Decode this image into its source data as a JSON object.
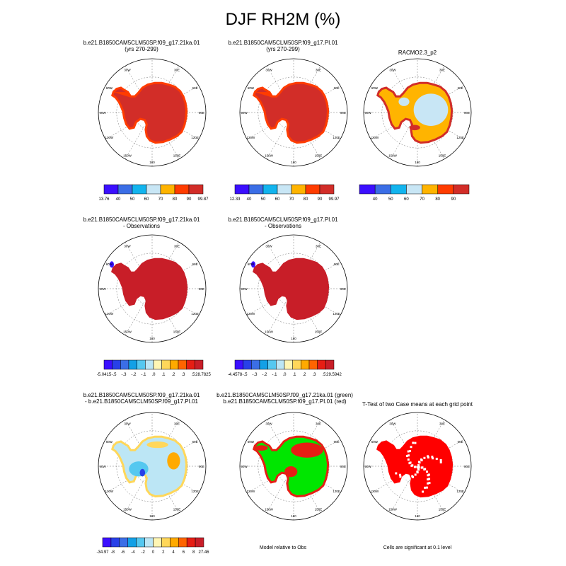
{
  "title": "DJF RH2M (%)",
  "panels": [
    {
      "id": "p1",
      "title1": "b.e21.B1850CAM5CLM50SP.f09_g17.21ka.01",
      "title2": "(yrs 270-299)",
      "fill": "red",
      "holes": "none"
    },
    {
      "id": "p2",
      "title1": "b.e21.B1850CAM5CLM50SP.f09_g17.PI.01",
      "title2": "(yrs 270-299)",
      "fill": "red",
      "holes": "none"
    },
    {
      "id": "p3",
      "title1": "RACMO2.3_p2",
      "title2": "",
      "fill": "obs",
      "holes": "none"
    },
    {
      "id": "p4",
      "title1": "b.e21.B1850CAM5CLM50SP.f09_g17.21ka.01",
      "title2": "- Observations",
      "fill": "diff",
      "holes": "none"
    },
    {
      "id": "p5",
      "title1": "b.e21.B1850CAM5CLM50SP.f09_g17.PI.01",
      "title2": "- Observations",
      "fill": "diff",
      "holes": "none"
    },
    {
      "id": "p6",
      "title1": "b.e21.B1850CAM5CLM50SP.f09_g17.21ka.01",
      "title2": "- b.e21.B1850CAM5CLM50SP.f09_g17.PI.01",
      "fill": "cdiff",
      "holes": "none"
    },
    {
      "id": "p7",
      "title1": "b.e21.B1850CAM5CLM50SP.f09_g17.21ka.01 (green)",
      "title2": "b.e21.B1850CAM5CLM50SP.f09_g17.PI.01 (red)",
      "fill": "green",
      "holes": "none"
    },
    {
      "id": "p8",
      "title1": "T-Test of two Case means at each grid point",
      "title2": "",
      "fill": "ttest",
      "holes": "white"
    }
  ],
  "map_labels": {
    "lon": [
      "30W",
      "30E",
      "60W",
      "60E",
      "90W",
      "90E",
      "120W",
      "120E",
      "150W",
      "150E",
      "180"
    ]
  },
  "colorbars": [
    {
      "id": "cb1",
      "colors": [
        "#3b0fff",
        "#3b6ee6",
        "#12b4ee",
        "#c8e6f5",
        "#ffb400",
        "#ff3c00",
        "#d22d28"
      ],
      "ticks": [
        "13.76",
        "40",
        "50",
        "60",
        "70",
        "80",
        "90",
        "99.87"
      ]
    },
    {
      "id": "cb2",
      "colors": [
        "#3b0fff",
        "#3b6ee6",
        "#12b4ee",
        "#c8e6f5",
        "#ffb400",
        "#ff3c00",
        "#d22d28"
      ],
      "ticks": [
        "12.33",
        "40",
        "50",
        "60",
        "70",
        "80",
        "90",
        "99.97"
      ]
    },
    {
      "id": "cb3",
      "colors": [
        "#3b0fff",
        "#3b6ee6",
        "#12b4ee",
        "#c8e6f5",
        "#ffb400",
        "#ff3c00",
        "#d22d28"
      ],
      "ticks": [
        "",
        "40",
        "50",
        "60",
        "70",
        "80",
        "90",
        ""
      ]
    },
    {
      "id": "cb4",
      "colors": [
        "#3b0fff",
        "#2840e8",
        "#3b6ee6",
        "#12a0e6",
        "#55c8f0",
        "#bce6f5",
        "#fff6b4",
        "#ffd75a",
        "#ffaa00",
        "#ff6400",
        "#e61e14",
        "#c81e28"
      ],
      "ticks": [
        "-5.0415",
        "-.5",
        "-.3",
        "-.2",
        "-.1",
        ".0",
        ".1",
        ".2",
        ".3",
        ".5",
        "28.7825"
      ]
    },
    {
      "id": "cb5",
      "colors": [
        "#3b0fff",
        "#2840e8",
        "#3b6ee6",
        "#12a0e6",
        "#55c8f0",
        "#bce6f5",
        "#fff6b4",
        "#ffd75a",
        "#ffaa00",
        "#ff6400",
        "#e61e14",
        "#c81e28"
      ],
      "ticks": [
        "-4.4578",
        "-.5",
        "-.3",
        "-.2",
        "-.1",
        ".0",
        ".1",
        ".2",
        ".3",
        ".5",
        "29.5942"
      ]
    },
    {
      "id": "cb6",
      "colors": [
        "#3b0fff",
        "#2840e8",
        "#3b6ee6",
        "#12a0e6",
        "#55c8f0",
        "#bce6f5",
        "#fff6b4",
        "#ffd75a",
        "#ffaa00",
        "#ff6400",
        "#e61e14",
        "#c81e28"
      ],
      "ticks": [
        "-34.97",
        "-8",
        "-6",
        "-4",
        "-2",
        "0",
        "2",
        "4",
        "6",
        "8",
        "27.46"
      ]
    }
  ],
  "footnotes": {
    "model_relative": "Model relative to Obs",
    "cells_significant": "Cells are significant at 0.1 level"
  },
  "chart_data": [
    {
      "type": "heatmap",
      "panel": "p1",
      "title": "b.e21.B1850CAM5CLM50SP.f09_g17.21ka.01 (yrs 270-299)",
      "variable": "RH2M",
      "units": "%",
      "range": [
        13.76,
        99.87
      ],
      "levels": [
        40,
        50,
        60,
        70,
        80,
        90
      ]
    },
    {
      "type": "heatmap",
      "panel": "p2",
      "title": "b.e21.B1850CAM5CLM50SP.f09_g17.PI.01 (yrs 270-299)",
      "variable": "RH2M",
      "units": "%",
      "range": [
        12.33,
        99.97
      ],
      "levels": [
        40,
        50,
        60,
        70,
        80,
        90
      ]
    },
    {
      "type": "heatmap",
      "panel": "p3",
      "title": "RACMO2.3_p2",
      "variable": "RH2M",
      "units": "%",
      "levels": [
        40,
        50,
        60,
        70,
        80,
        90
      ]
    },
    {
      "type": "heatmap",
      "panel": "p4",
      "title": "b.e21.B1850CAM5CLM50SP.f09_g17.21ka.01 - Observations",
      "range": [
        -5.0415,
        28.7825
      ],
      "levels": [
        -0.5,
        -0.3,
        -0.2,
        -0.1,
        0.0,
        0.1,
        0.2,
        0.3,
        0.5
      ]
    },
    {
      "type": "heatmap",
      "panel": "p5",
      "title": "b.e21.B1850CAM5CLM50SP.f09_g17.PI.01 - Observations",
      "range": [
        -4.4578,
        29.5942
      ],
      "levels": [
        -0.5,
        -0.3,
        -0.2,
        -0.1,
        0.0,
        0.1,
        0.2,
        0.3,
        0.5
      ]
    },
    {
      "type": "heatmap",
      "panel": "p6",
      "title": "b.e21.B1850CAM5CLM50SP.f09_g17.21ka.01 - b.e21.B1850CAM5CLM50SP.f09_g17.PI.01",
      "range": [
        -34.97,
        27.46
      ],
      "levels": [
        -8,
        -6,
        -4,
        -2,
        0,
        2,
        4,
        6,
        8
      ]
    },
    {
      "type": "heatmap",
      "panel": "p7",
      "title": "Model relative to Obs",
      "categories": [
        "21ka.01 (green)",
        "PI.01 (red)"
      ]
    },
    {
      "type": "heatmap",
      "panel": "p8",
      "title": "T-Test of two Case means at each grid point",
      "significance_level": 0.1
    }
  ]
}
